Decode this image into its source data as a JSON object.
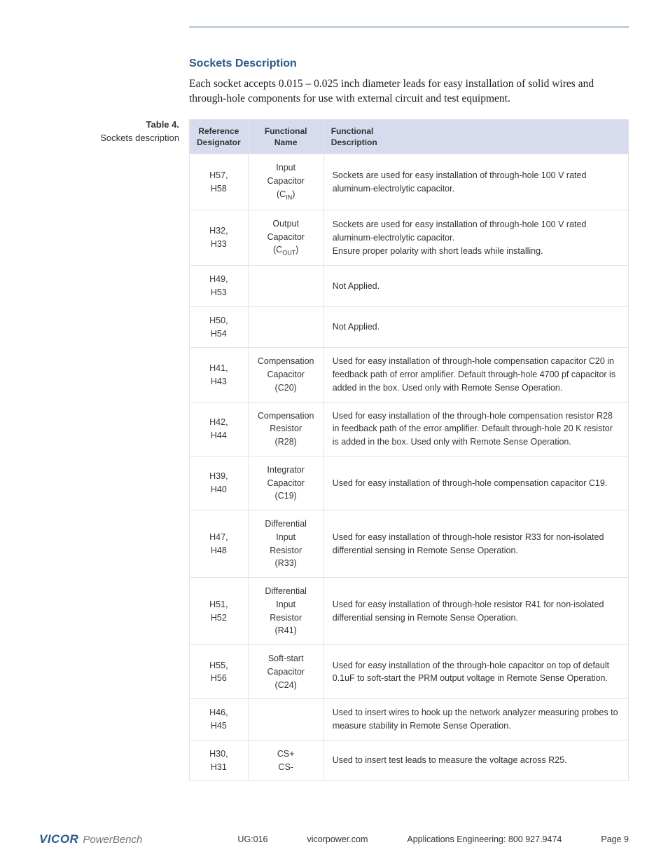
{
  "section": {
    "title": "Sockets Description",
    "intro": "Each socket accepts 0.015 – 0.025 inch diameter leads for easy installation of solid wires and through-hole components for use with external circuit and test equipment."
  },
  "table": {
    "label_num": "Table 4.",
    "label_caption": "Sockets description",
    "headers": {
      "col1_l1": "Reference",
      "col1_l2": "Designator",
      "col2_l1": "Functional",
      "col2_l2": "Name",
      "col3_l1": "Functional",
      "col3_l2": "Description"
    },
    "rows": [
      {
        "ref_l1": "H57,",
        "ref_l2": "H58",
        "name_l1": "Input",
        "name_l2": "Capacitor",
        "name_l3_pre": "(C",
        "name_l3_sub": "IN",
        "name_l3_post": ")",
        "desc": "Sockets are used for easy installation of through-hole 100 V rated aluminum-electrolytic capacitor."
      },
      {
        "ref_l1": "H32,",
        "ref_l2": "H33",
        "name_l1": "Output",
        "name_l2": "Capacitor",
        "name_l3_pre": "(C",
        "name_l3_sub": "OUT",
        "name_l3_post": ")",
        "desc": "Sockets are used for easy installation of through-hole 100 V rated aluminum-electrolytic capacitor.\nEnsure proper polarity with short leads while installing."
      },
      {
        "ref_l1": "H49,",
        "ref_l2": "H53",
        "name_l1": "",
        "name_l2": "",
        "name_l3_pre": "",
        "name_l3_sub": "",
        "name_l3_post": "",
        "desc": "Not Applied."
      },
      {
        "ref_l1": "H50,",
        "ref_l2": "H54",
        "name_l1": "",
        "name_l2": "",
        "name_l3_pre": "",
        "name_l3_sub": "",
        "name_l3_post": "",
        "desc": "Not Applied."
      },
      {
        "ref_l1": "H41,",
        "ref_l2": "H43",
        "name_l1": "Compensation",
        "name_l2": "Capacitor",
        "name_l3_pre": "(C20)",
        "name_l3_sub": "",
        "name_l3_post": "",
        "desc": "Used for easy installation of through-hole compensation capacitor C20 in feedback path of error amplifier. Default through-hole 4700 pf capacitor is added in the box. Used only with Remote Sense Operation."
      },
      {
        "ref_l1": "H42,",
        "ref_l2": "H44",
        "name_l1": "Compensation",
        "name_l2": "Resistor",
        "name_l3_pre": "(R28)",
        "name_l3_sub": "",
        "name_l3_post": "",
        "desc": "Used for easy installation of the through-hole compensation resistor R28 in feedback path of the error amplifier. Default through-hole 20 K resistor is added in the box. Used only with Remote Sense Operation."
      },
      {
        "ref_l1": "H39,",
        "ref_l2": "H40",
        "name_l1": "Integrator",
        "name_l2": "Capacitor",
        "name_l3_pre": "(C19)",
        "name_l3_sub": "",
        "name_l3_post": "",
        "desc": "Used for easy installation of through-hole compensation capacitor C19."
      },
      {
        "ref_l1": "H47,",
        "ref_l2": "H48",
        "name_l1": "Differential",
        "name_l2": "Input",
        "name_l3_pre": "Resistor",
        "name_l3_sub": "",
        "name_l3_post": "",
        "name_l4": "(R33)",
        "desc": "Used for easy installation of through-hole resistor R33 for non-isolated differential sensing in Remote Sense Operation."
      },
      {
        "ref_l1": "H51,",
        "ref_l2": "H52",
        "name_l1": "Differential",
        "name_l2": "Input",
        "name_l3_pre": "Resistor",
        "name_l3_sub": "",
        "name_l3_post": "",
        "name_l4": "(R41)",
        "desc": "Used for easy installation of through-hole resistor R41 for non-isolated differential sensing in Remote Sense Operation."
      },
      {
        "ref_l1": "H55,",
        "ref_l2": "H56",
        "name_l1": "Soft-start",
        "name_l2": "Capacitor",
        "name_l3_pre": "(C24)",
        "name_l3_sub": "",
        "name_l3_post": "",
        "desc": "Used for easy installation of the through-hole capacitor on top of default 0.1uF to soft-start the PRM output voltage in Remote Sense Operation."
      },
      {
        "ref_l1": "H46,",
        "ref_l2": "H45",
        "name_l1": "",
        "name_l2": "",
        "name_l3_pre": "",
        "name_l3_sub": "",
        "name_l3_post": "",
        "desc": "Used to insert wires to hook up the network analyzer measuring probes to measure stability in Remote Sense Operation."
      },
      {
        "ref_l1": "H30,",
        "ref_l2": "H31",
        "name_l1": "CS+",
        "name_l2": "CS-",
        "name_l3_pre": "",
        "name_l3_sub": "",
        "name_l3_post": "",
        "desc": "Used to insert test leads to measure the voltage across R25."
      }
    ]
  },
  "footer": {
    "logo_brand": "VICOR",
    "logo_sub": "PowerBench",
    "doc_id": "UG:016",
    "url": "vicorpower.com",
    "contact": "Applications Engineering: 800 927.9474",
    "page": "Page 9"
  },
  "colors": {
    "accent": "#2a5a8a",
    "header_bg": "#d6dced",
    "border": "#e3e3e3"
  }
}
